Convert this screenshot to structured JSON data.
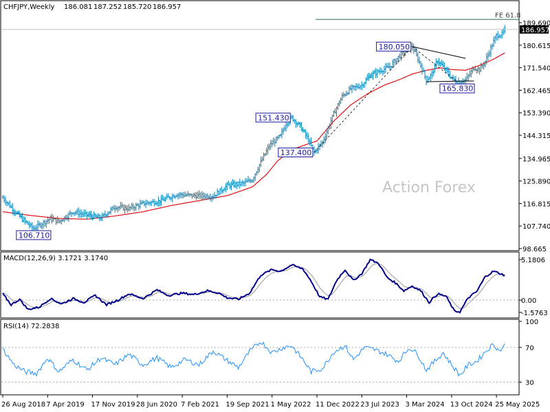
{
  "chart_data": {
    "type": "ohlc",
    "symbol_header": "CHFJPY,Weekly",
    "ohlc_last": {
      "open": "186.081",
      "high": "187.252",
      "low": "185.720",
      "close": "186.957"
    },
    "x_tick_labels": [
      "26 Aug 2018",
      "7 Apr 2019",
      "17 Nov 2019",
      "28 Jun 2020",
      "7 Feb 2021",
      "19 Sep 2021",
      "1 May 2022",
      "11 Dec 2022",
      "23 Jul 2023",
      "3 Mar 2024",
      "13 Oct 2024",
      "25 May 2025"
    ],
    "x_tick_week_index": [
      0,
      32,
      64,
      96,
      128,
      160,
      192,
      224,
      256,
      288,
      320,
      352
    ],
    "price_axis": {
      "ylim": [
        98.665,
        189.69
      ],
      "ticks": [
        "189.690",
        "180.615",
        "171.540",
        "162.465",
        "153.390",
        "144.315",
        "134.965",
        "125.890",
        "116.815",
        "107.740",
        "98.665"
      ]
    },
    "current_price": "186.957",
    "price_anchors": [
      [
        0,
        119.2
      ],
      [
        8,
        114.0
      ],
      [
        14,
        110.5
      ],
      [
        22,
        106.71
      ],
      [
        34,
        110.8
      ],
      [
        40,
        109.5
      ],
      [
        50,
        113.5
      ],
      [
        60,
        112.2
      ],
      [
        70,
        111.0
      ],
      [
        80,
        115.5
      ],
      [
        90,
        114.8
      ],
      [
        100,
        116.8
      ],
      [
        112,
        117.8
      ],
      [
        124,
        120.5
      ],
      [
        136,
        120.0
      ],
      [
        150,
        119.8
      ],
      [
        160,
        124.0
      ],
      [
        172,
        125.0
      ],
      [
        178,
        126.5
      ],
      [
        184,
        133.5
      ],
      [
        190,
        140.0
      ],
      [
        198,
        144.0
      ],
      [
        202,
        149.0
      ],
      [
        206,
        151.43
      ],
      [
        212,
        148.0
      ],
      [
        218,
        142.5
      ],
      [
        222,
        137.4
      ],
      [
        228,
        141.5
      ],
      [
        236,
        153.0
      ],
      [
        242,
        160.0
      ],
      [
        248,
        163.0
      ],
      [
        256,
        164.5
      ],
      [
        262,
        168.5
      ],
      [
        268,
        170.0
      ],
      [
        276,
        172.0
      ],
      [
        284,
        177.0
      ],
      [
        292,
        180.05
      ],
      [
        298,
        172.5
      ],
      [
        302,
        166.5
      ],
      [
        306,
        169.0
      ],
      [
        310,
        174.5
      ],
      [
        316,
        170.5
      ],
      [
        320,
        167.5
      ],
      [
        324,
        165.83
      ],
      [
        330,
        166.5
      ],
      [
        336,
        171.5
      ],
      [
        340,
        170.8
      ],
      [
        344,
        174.0
      ],
      [
        348,
        179.5
      ],
      [
        352,
        184.5
      ],
      [
        356,
        185.0
      ],
      [
        358,
        186.957
      ]
    ],
    "ma_anchors": [
      [
        0,
        113.5
      ],
      [
        20,
        112.0
      ],
      [
        40,
        110.8
      ],
      [
        60,
        110.5
      ],
      [
        80,
        111.8
      ],
      [
        100,
        113.5
      ],
      [
        120,
        116.0
      ],
      [
        140,
        118.0
      ],
      [
        160,
        120.0
      ],
      [
        178,
        123.5
      ],
      [
        188,
        128.5
      ],
      [
        196,
        134.0
      ],
      [
        206,
        138.5
      ],
      [
        216,
        140.5
      ],
      [
        224,
        142.0
      ],
      [
        236,
        150.0
      ],
      [
        248,
        156.5
      ],
      [
        260,
        161.0
      ],
      [
        272,
        164.5
      ],
      [
        284,
        167.0
      ],
      [
        292,
        169.0
      ],
      [
        302,
        170.5
      ],
      [
        312,
        171.5
      ],
      [
        320,
        170.8
      ],
      [
        330,
        170.5
      ],
      [
        340,
        172.5
      ],
      [
        350,
        175.0
      ],
      [
        358,
        177.5
      ]
    ],
    "annotations": [
      {
        "text": "180.050",
        "week": 292,
        "price": 180.05,
        "box_side": "left"
      },
      {
        "text": "165.830",
        "week": 324,
        "price": 165.83,
        "box_side": "below"
      },
      {
        "text": "151.430",
        "week": 206,
        "price": 151.43,
        "box_side": "left"
      },
      {
        "text": "137.400",
        "week": 222,
        "price": 137.4,
        "box_side": "left"
      },
      {
        "text": "106.710",
        "week": 22,
        "price": 106.71,
        "box_side": "below"
      }
    ],
    "fe_label": "FE 61.8",
    "fe_level": 191.0,
    "series_colors": {
      "price": "#007eb4",
      "ma": "#e01010",
      "macd": "#00008b",
      "signal": "#999999",
      "rsi": "#1e90ff",
      "trendline": "#000000"
    },
    "macd": {
      "header": "MACD(12,26,9) 3.1721 3.1740",
      "ylim": [
        -2.2,
        5.9
      ],
      "tick_labels": [
        "5.1806",
        "0.00",
        "-1.5763"
      ],
      "tick_values": [
        5.1806,
        0.0,
        -1.5763
      ],
      "anchors": [
        [
          0,
          0.8
        ],
        [
          6,
          -0.6
        ],
        [
          12,
          0.1
        ],
        [
          18,
          -1.2
        ],
        [
          26,
          -0.9
        ],
        [
          34,
          0.2
        ],
        [
          42,
          -0.5
        ],
        [
          50,
          0.2
        ],
        [
          58,
          -0.3
        ],
        [
          66,
          0.6
        ],
        [
          74,
          -0.6
        ],
        [
          82,
          0.0
        ],
        [
          90,
          0.8
        ],
        [
          100,
          0.2
        ],
        [
          110,
          1.3
        ],
        [
          118,
          0.6
        ],
        [
          128,
          0.9
        ],
        [
          136,
          0.7
        ],
        [
          146,
          1.2
        ],
        [
          154,
          0.9
        ],
        [
          160,
          0.3
        ],
        [
          168,
          0.1
        ],
        [
          176,
          0.9
        ],
        [
          184,
          3.2
        ],
        [
          192,
          3.9
        ],
        [
          198,
          3.7
        ],
        [
          206,
          4.5
        ],
        [
          214,
          4.0
        ],
        [
          220,
          2.4
        ],
        [
          226,
          0.4
        ],
        [
          232,
          0.1
        ],
        [
          238,
          2.5
        ],
        [
          244,
          3.9
        ],
        [
          250,
          2.5
        ],
        [
          256,
          3.4
        ],
        [
          262,
          5.18
        ],
        [
          268,
          4.7
        ],
        [
          274,
          2.9
        ],
        [
          280,
          2.2
        ],
        [
          286,
          1.2
        ],
        [
          292,
          1.8
        ],
        [
          298,
          1.2
        ],
        [
          304,
          -0.3
        ],
        [
          310,
          0.8
        ],
        [
          316,
          0.5
        ],
        [
          322,
          -1.4
        ],
        [
          326,
          -1.5
        ],
        [
          332,
          0.3
        ],
        [
          338,
          1.1
        ],
        [
          344,
          3.0
        ],
        [
          350,
          3.7
        ],
        [
          358,
          3.17
        ]
      ]
    },
    "rsi": {
      "header": "RSI(14) 72.2838",
      "ylim": [
        17,
        100
      ],
      "tick_labels": [
        "100",
        "70",
        "30"
      ],
      "tick_values": [
        100,
        70,
        30
      ],
      "levels": [
        70,
        30
      ],
      "anchors": [
        [
          0,
          68
        ],
        [
          8,
          50
        ],
        [
          16,
          42
        ],
        [
          24,
          40
        ],
        [
          32,
          58
        ],
        [
          40,
          42
        ],
        [
          50,
          56
        ],
        [
          60,
          44
        ],
        [
          70,
          58
        ],
        [
          80,
          50
        ],
        [
          90,
          62
        ],
        [
          100,
          50
        ],
        [
          110,
          58
        ],
        [
          120,
          47
        ],
        [
          130,
          56
        ],
        [
          140,
          50
        ],
        [
          150,
          66
        ],
        [
          160,
          55
        ],
        [
          168,
          47
        ],
        [
          176,
          65
        ],
        [
          184,
          77
        ],
        [
          192,
          64
        ],
        [
          200,
          70
        ],
        [
          206,
          72
        ],
        [
          214,
          56
        ],
        [
          220,
          42
        ],
        [
          228,
          46
        ],
        [
          236,
          65
        ],
        [
          244,
          72
        ],
        [
          250,
          56
        ],
        [
          258,
          70
        ],
        [
          266,
          67
        ],
        [
          274,
          62
        ],
        [
          282,
          54
        ],
        [
          290,
          70
        ],
        [
          296,
          62
        ],
        [
          302,
          44
        ],
        [
          308,
          54
        ],
        [
          314,
          64
        ],
        [
          320,
          50
        ],
        [
          326,
          38
        ],
        [
          332,
          50
        ],
        [
          338,
          54
        ],
        [
          344,
          65
        ],
        [
          350,
          74
        ],
        [
          354,
          66
        ],
        [
          358,
          72.28
        ]
      ]
    },
    "watermark": "Action Forex"
  }
}
